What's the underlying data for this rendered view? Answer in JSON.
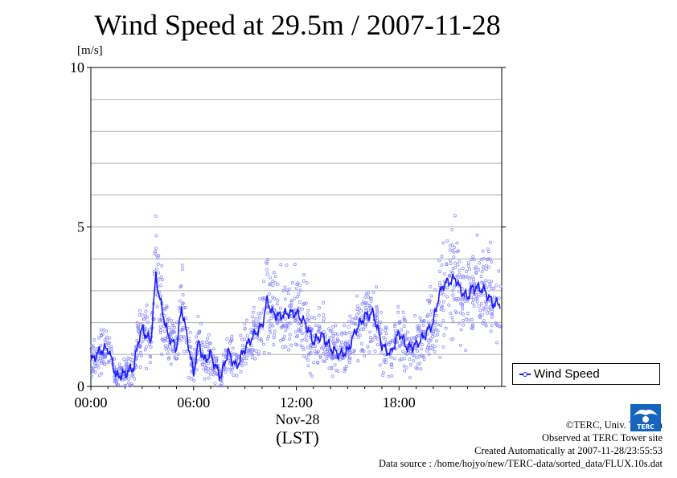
{
  "chart_data": {
    "type": "scatter",
    "title": "Wind Speed at 29.5m / 2007-11-28",
    "ylabel": "[m/s]",
    "xlabel": "(LST)",
    "date_label": "Nov-28",
    "ylim": [
      0,
      10
    ],
    "xlim": [
      "00:00",
      "24:00"
    ],
    "y_ticks": [
      "0",
      "5",
      "10"
    ],
    "x_ticks": [
      "00:00",
      "06:00",
      "12:00",
      "18:00"
    ],
    "grid": true,
    "legend_position": "bottom-right outside",
    "series": [
      {
        "name": "Wind Speed",
        "color": "#1a1aff",
        "marker_color": "#8080ff",
        "x_hours": [
          0,
          0.5,
          1,
          1.5,
          2,
          2.5,
          2.8,
          3,
          3.5,
          3.8,
          4,
          4.5,
          5,
          5.3,
          5.6,
          6,
          6.3,
          6.6,
          7,
          7.3,
          7.6,
          8,
          8.5,
          9,
          9.5,
          10,
          10.3,
          10.6,
          11,
          11.5,
          12,
          12.5,
          13,
          13.5,
          14,
          14.5,
          15,
          15.5,
          16,
          16.5,
          17,
          17.5,
          18,
          18.5,
          19,
          19.5,
          20,
          20.3,
          20.6,
          21,
          21.3,
          21.6,
          22,
          22.3,
          22.6,
          23,
          23.5
        ],
        "y_values": [
          0.8,
          1.1,
          1.2,
          0.3,
          0.4,
          0.6,
          1.5,
          1.8,
          1.4,
          3.5,
          2.8,
          1.6,
          1.2,
          2.5,
          1.6,
          0.4,
          1.4,
          0.8,
          1.0,
          0.6,
          0.3,
          1.1,
          0.6,
          1.2,
          1.6,
          1.9,
          2.7,
          2.3,
          2.2,
          2.3,
          2.3,
          2.0,
          1.4,
          1.6,
          1.2,
          1.0,
          1.1,
          1.8,
          2.2,
          2.3,
          1.3,
          1.0,
          1.7,
          1.2,
          1.3,
          1.6,
          2.0,
          2.8,
          3.2,
          3.3,
          3.4,
          3.0,
          2.8,
          3.1,
          3.1,
          3.0,
          2.6
        ]
      }
    ]
  },
  "credits": {
    "copyright": "©TERC, Univ. Tsukuba",
    "observed": "Observed at TERC Tower site",
    "created": "Created Automatically at 2007-11-28/23:55:53",
    "source": "Data source : /home/hojyo/new/TERC-data/sorted_data/FLUX.10s.dat"
  },
  "logo": {
    "text": "TERC"
  }
}
